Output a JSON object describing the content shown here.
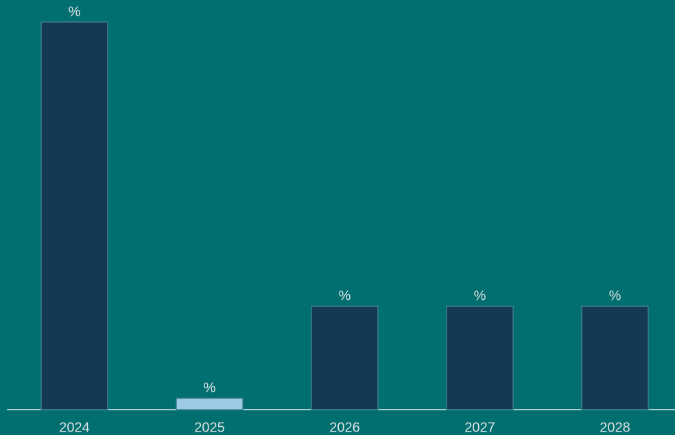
{
  "chart_data": {
    "type": "bar",
    "categories": [
      "2024",
      "2025",
      "2026",
      "2027",
      "2028"
    ],
    "values": [
      37.5,
      1.1,
      10,
      10,
      10
    ],
    "value_labels": [
      "%",
      "%",
      "%",
      "%",
      "%"
    ],
    "colors": [
      "#133a52",
      "#9dcbe6",
      "#133a52",
      "#133a52",
      "#133a52"
    ],
    "background": "#016e70"
  }
}
